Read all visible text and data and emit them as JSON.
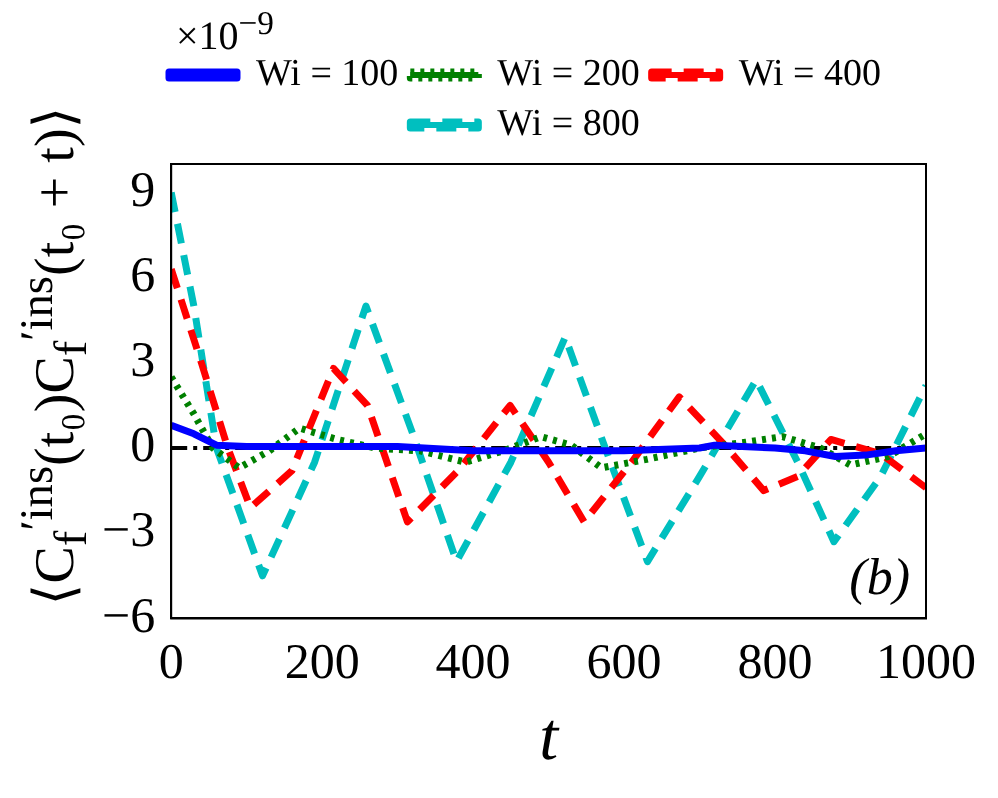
{
  "chart_data": {
    "type": "line",
    "xlabel": "t",
    "ylabel": "⟨C$_{f}$$^{′ins}$(t₀)C$_{f}$$^{′ins}$(t₀ + t)⟩",
    "annotations": [
      "×10$^{−9}$",
      "(b)"
    ],
    "xlim": [
      0,
      1000
    ],
    "xticks": [
      0,
      200,
      400,
      600,
      800,
      1000
    ],
    "ylim": [
      -6,
      10
    ],
    "yticks": [
      -6,
      -3,
      0,
      3,
      6,
      9
    ],
    "grid": false,
    "legend": "top",
    "marker": "none",
    "ref_lines": [
      {
        "axis": "y",
        "value": 0,
        "color": "#000000",
        "line_style": "dashed"
      }
    ],
    "series": [
      {
        "name": "Wi = 100",
        "color": "#0000ff",
        "line_style": "solid",
        "x": [
          0,
          30,
          60,
          100,
          200,
          300,
          400,
          500,
          600,
          700,
          720,
          800,
          840,
          880,
          920,
          960,
          1000
        ],
        "values": [
          0.8,
          0.5,
          0.1,
          0.05,
          0.05,
          0.05,
          -0.1,
          -0.1,
          -0.1,
          0,
          0.1,
          0,
          -0.1,
          -0.3,
          -0.25,
          -0.1,
          0
        ]
      },
      {
        "name": "Wi = 200",
        "color": "#008000",
        "line_style": "dotted",
        "x": [
          0,
          30,
          55,
          90,
          130,
          170,
          220,
          270,
          330,
          390,
          440,
          490,
          530,
          570,
          630,
          700,
          760,
          810,
          860,
          900,
          950,
          1000
        ],
        "values": [
          2.5,
          1.2,
          0,
          -0.7,
          -0.1,
          0.7,
          0.3,
          0,
          -0.1,
          -0.5,
          -0.1,
          0.4,
          0.1,
          -0.7,
          -0.4,
          0,
          0.2,
          0.4,
          0,
          -0.6,
          -0.3,
          0.5
        ]
      },
      {
        "name": "Wi = 400",
        "color": "#ff0000",
        "line_style": "dashed",
        "x": [
          0,
          40,
          75,
          105,
          160,
          215,
          260,
          313,
          380,
          449,
          500,
          547,
          610,
          673,
          730,
          785,
          830,
          874,
          940,
          1000
        ],
        "values": [
          6.3,
          3,
          0,
          -2.1,
          -0.8,
          2.8,
          1.5,
          -2.6,
          -0.8,
          1.5,
          -0.5,
          -2.6,
          -0.5,
          1.8,
          0.2,
          -1.5,
          -1,
          0.3,
          -0.2,
          -1.4
        ]
      },
      {
        "name": "Wi = 800",
        "color": "#00bfbf",
        "line_style": "dashed",
        "x": [
          0,
          30,
          60,
          121,
          190,
          258,
          320,
          378,
          450,
          522,
          575,
          631,
          700,
          775,
          830,
          878,
          940,
          1000
        ],
        "values": [
          9,
          5,
          0,
          -4.5,
          -0.5,
          5,
          0.5,
          -4,
          -0.5,
          3.9,
          0,
          -4,
          -1,
          2.4,
          -0.5,
          -3.3,
          -1,
          2.2
        ]
      }
    ]
  }
}
